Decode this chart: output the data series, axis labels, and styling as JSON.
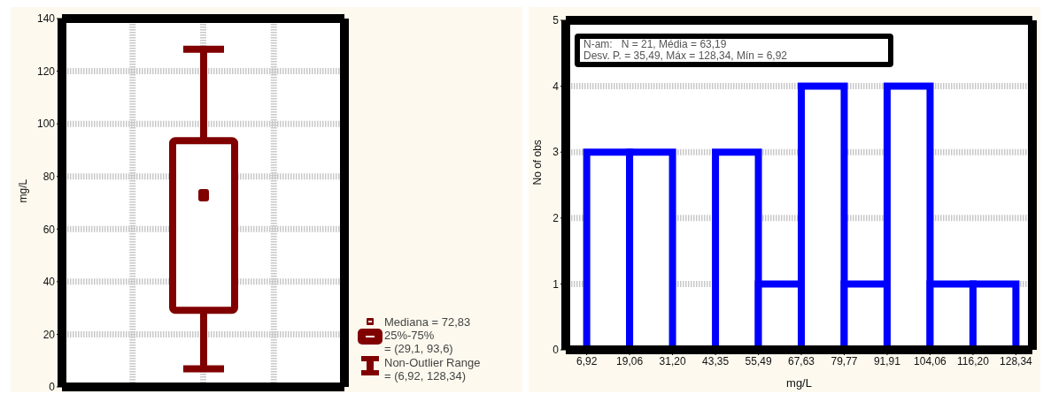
{
  "chart_data": [
    {
      "type": "box",
      "ylabel": "mg/L",
      "categories": [
        null
      ],
      "color": "#800000",
      "ylim": [
        0,
        140
      ],
      "yticks": [
        0,
        20,
        40,
        60,
        80,
        100,
        120,
        140
      ],
      "grid": true,
      "boxes": [
        {
          "low": 6.92,
          "q1": 29.1,
          "median": 72.83,
          "q3": 93.6,
          "high": 128.34
        }
      ],
      "annotations": [
        "Mediana = 72,83",
        "25%-75%\n= (29,1, 93,6)",
        "Non-Outlier Range\n= (6,92, 128,34)"
      ]
    },
    {
      "type": "histogram",
      "xlabel": "mg/L",
      "ylabel": "No of obs",
      "color": "#0000ff",
      "grid": "y",
      "bins": [
        6.92,
        19.06,
        31.2,
        43.35,
        55.49,
        67.63,
        79.77,
        91.91,
        104.06,
        116.2,
        128.34
      ],
      "values": [
        3,
        3,
        0,
        3,
        1,
        4,
        1,
        4,
        1,
        1
      ],
      "xlim": [
        1,
        133
      ],
      "xticks": [
        {
          "value": 6.92,
          "label": "6,92"
        },
        {
          "value": 19.06,
          "label": "19,06"
        },
        {
          "value": 31.2,
          "label": "31,20"
        },
        {
          "value": 43.35,
          "label": "43,35"
        },
        {
          "value": 55.49,
          "label": "55,49"
        },
        {
          "value": 67.63,
          "label": "67,63"
        },
        {
          "value": 79.77,
          "label": "79,77"
        },
        {
          "value": 91.91,
          "label": "91,91"
        },
        {
          "value": 104.06,
          "label": "104,06"
        },
        {
          "value": 116.2,
          "label": "116,20"
        },
        {
          "value": 128.34,
          "label": "128,34"
        }
      ],
      "ylim": [
        0,
        5
      ],
      "yticks": [
        0,
        1,
        2,
        3,
        4,
        5
      ],
      "annotations": [
        "N-am:   N = 21, Média = 63,19",
        "Desv. P. = 35,49, Máx = 128,34, Mín = 6,92"
      ]
    }
  ]
}
